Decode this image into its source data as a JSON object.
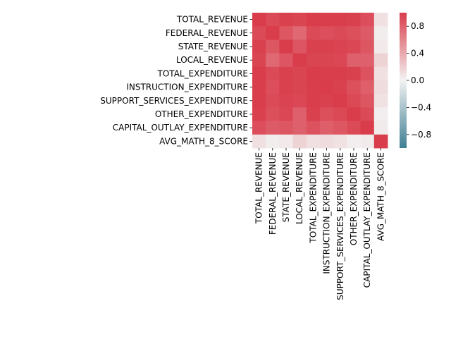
{
  "chart_data": {
    "type": "heatmap",
    "title": "",
    "xlabel": "",
    "ylabel": "",
    "labels": [
      "TOTAL_REVENUE",
      "FEDERAL_REVENUE",
      "STATE_REVENUE",
      "LOCAL_REVENUE",
      "TOTAL_EXPENDITURE",
      "INSTRUCTION_EXPENDITURE",
      "SUPPORT_SERVICES_EXPENDITURE",
      "OTHER_EXPENDITURE",
      "CAPITAL_OUTLAY_EXPENDITURE",
      "AVG_MATH_8_SCORE"
    ],
    "matrix": [
      [
        1.0,
        0.92,
        0.97,
        0.95,
        1.0,
        0.99,
        0.99,
        0.97,
        0.9,
        0.1
      ],
      [
        0.92,
        1.0,
        0.85,
        0.76,
        0.92,
        0.9,
        0.92,
        0.89,
        0.83,
        0.03
      ],
      [
        0.97,
        0.85,
        1.0,
        0.86,
        0.97,
        0.97,
        0.96,
        0.94,
        0.85,
        0.05
      ],
      [
        0.95,
        0.76,
        0.86,
        1.0,
        0.95,
        0.95,
        0.94,
        0.8,
        0.8,
        0.17
      ],
      [
        1.0,
        0.92,
        0.97,
        0.95,
        1.0,
        0.99,
        0.99,
        0.97,
        0.88,
        0.1
      ],
      [
        0.99,
        0.9,
        0.97,
        0.95,
        0.99,
        1.0,
        0.97,
        0.89,
        0.81,
        0.12
      ],
      [
        0.99,
        0.92,
        0.96,
        0.94,
        0.99,
        0.97,
        1.0,
        0.93,
        0.85,
        0.09
      ],
      [
        0.97,
        0.89,
        0.94,
        0.8,
        0.97,
        0.89,
        0.93,
        1.0,
        0.92,
        0.02
      ],
      [
        0.9,
        0.83,
        0.85,
        0.8,
        0.88,
        0.81,
        0.85,
        0.92,
        1.0,
        0.04
      ],
      [
        0.1,
        0.03,
        0.05,
        0.17,
        0.1,
        0.12,
        0.09,
        0.02,
        0.04,
        1.0
      ]
    ],
    "colorbar": {
      "ticks": [
        "−0.8",
        "−0.4",
        "0.0",
        "0.4",
        "0.8"
      ],
      "tick_values": [
        -0.8,
        -0.4,
        0.0,
        0.4,
        0.8
      ],
      "range": [
        -1.0,
        1.0
      ],
      "colormap": "diverging",
      "low_color": "#3f7f93",
      "mid_color": "#f2f2f2",
      "high_color": "#d93c4a"
    }
  }
}
